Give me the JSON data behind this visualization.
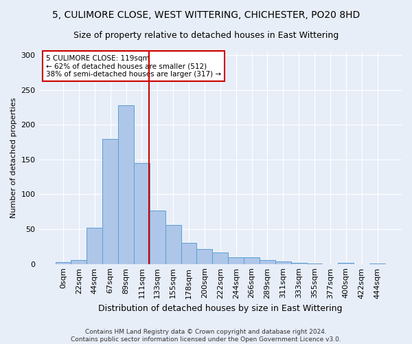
{
  "title": "5, CULIMORE CLOSE, WEST WITTERING, CHICHESTER, PO20 8HD",
  "subtitle": "Size of property relative to detached houses in East Wittering",
  "xlabel": "Distribution of detached houses by size in East Wittering",
  "ylabel": "Number of detached properties",
  "bar_values": [
    3,
    6,
    52,
    180,
    228,
    145,
    77,
    56,
    30,
    21,
    16,
    10,
    10,
    6,
    4,
    2,
    1,
    0,
    2,
    0,
    1
  ],
  "bin_labels": [
    "0sqm",
    "22sqm",
    "44sqm",
    "67sqm",
    "89sqm",
    "111sqm",
    "133sqm",
    "155sqm",
    "178sqm",
    "200sqm",
    "222sqm",
    "244sqm",
    "266sqm",
    "289sqm",
    "311sqm",
    "333sqm",
    "355sqm",
    "377sqm",
    "400sqm",
    "422sqm",
    "444sqm"
  ],
  "bar_color": "#aec6e8",
  "bar_edge_color": "#5a9fd4",
  "vline_x": 5.45,
  "vline_color": "#cc0000",
  "annotation_line1": "5 CULIMORE CLOSE: 119sqm",
  "annotation_line2": "← 62% of detached houses are smaller (512)",
  "annotation_line3": "38% of semi-detached houses are larger (317) →",
  "annotation_box_color": "#ffffff",
  "annotation_box_edge": "#cc0000",
  "ylim": [
    0,
    305
  ],
  "yticks": [
    0,
    50,
    100,
    150,
    200,
    250,
    300
  ],
  "footer": "Contains HM Land Registry data © Crown copyright and database right 2024.\nContains public sector information licensed under the Open Government Licence v3.0.",
  "bg_color": "#e8eef8",
  "plot_bg": "#e8eef8",
  "title_fontsize": 10,
  "subtitle_fontsize": 9,
  "grid_color": "#ffffff"
}
